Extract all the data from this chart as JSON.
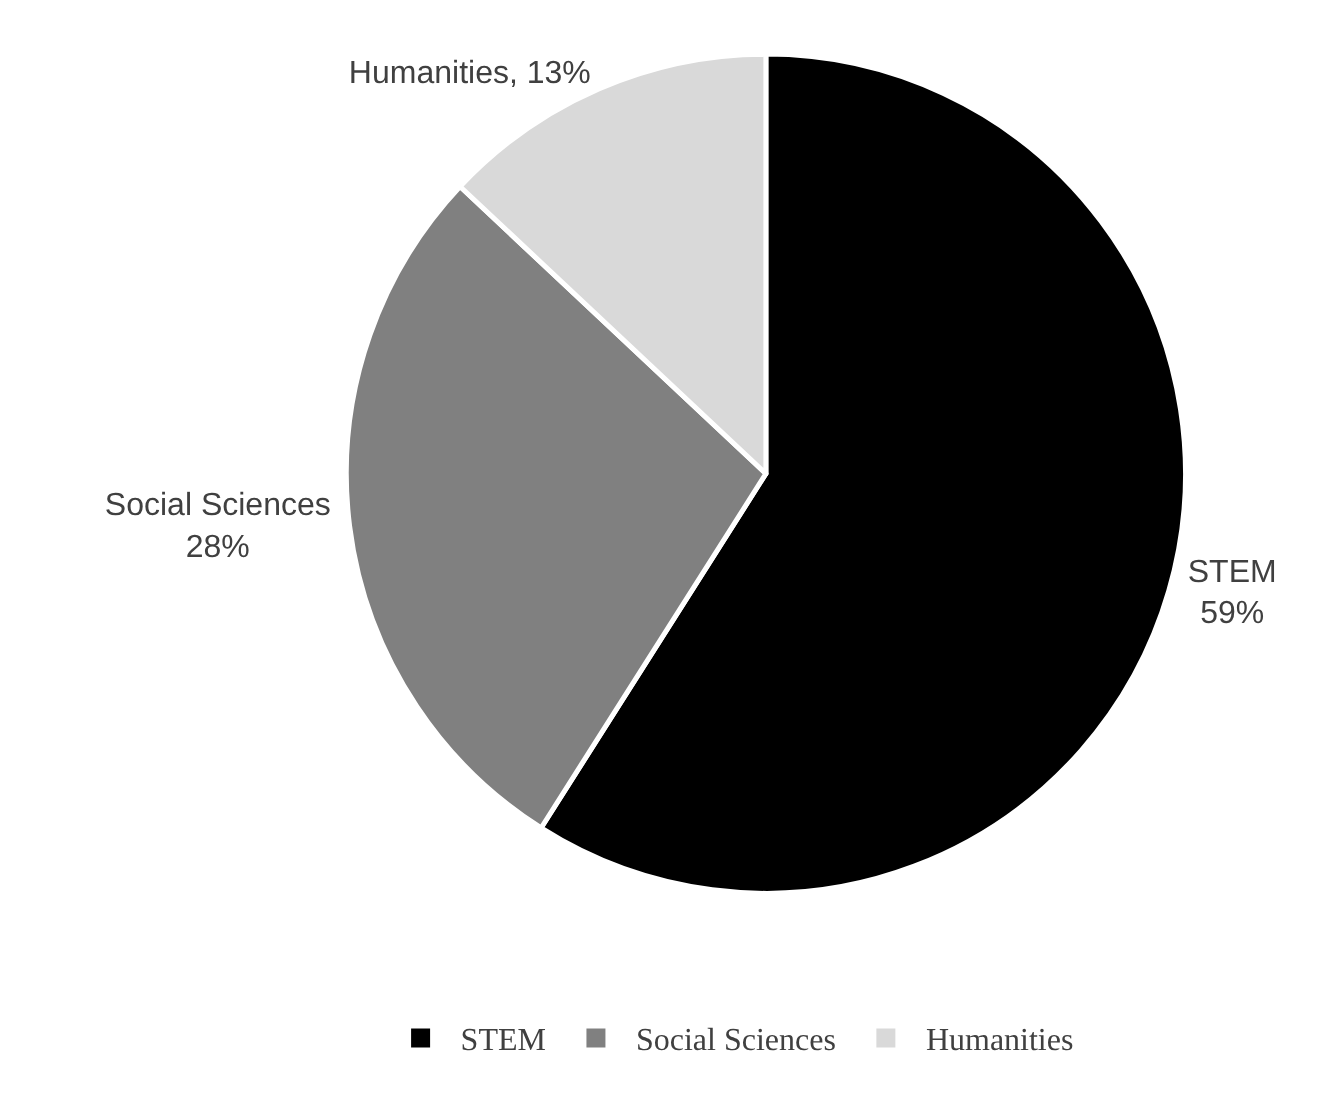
{
  "chart_data": {
    "type": "pie",
    "categories": [
      "STEM",
      "Social Sciences",
      "Humanities"
    ],
    "values": [
      59,
      28,
      13
    ],
    "colors": [
      "#000000",
      "#808080",
      "#d9d9d9"
    ],
    "value_labels": [
      "STEM\n59%",
      "Social Sciences\n28%",
      "Humanities, 13%"
    ],
    "legend": "bottom"
  }
}
